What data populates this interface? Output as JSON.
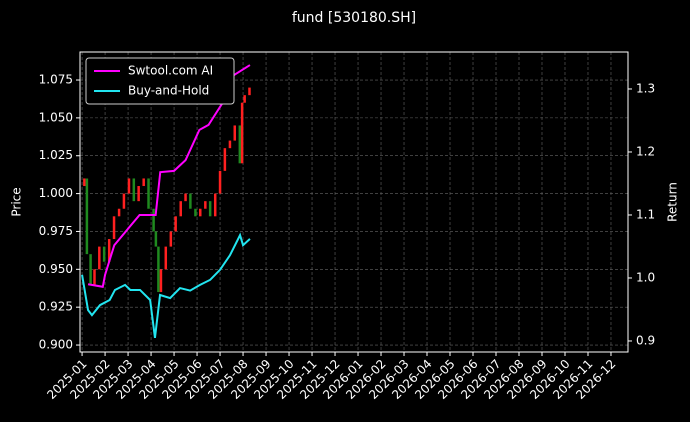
{
  "chart_data": {
    "type": "line",
    "title": "fund [530180.SH]",
    "y_label": "Price",
    "y2_label": "Return",
    "background": "#000000",
    "grid": true,
    "legend": "upper left",
    "xlim": [
      -0.09,
      23.74
    ],
    "xticks": [
      {
        "value": 0,
        "label": "2025-01"
      },
      {
        "value": 1,
        "label": "2025-02"
      },
      {
        "value": 2,
        "label": "2025-03"
      },
      {
        "value": 3,
        "label": "2025-04"
      },
      {
        "value": 4,
        "label": "2025-05"
      },
      {
        "value": 5,
        "label": "2025-06"
      },
      {
        "value": 6,
        "label": "2025-07"
      },
      {
        "value": 7,
        "label": "2025-08"
      },
      {
        "value": 8,
        "label": "2025-09"
      },
      {
        "value": 9,
        "label": "2025-10"
      },
      {
        "value": 10,
        "label": "2025-11"
      },
      {
        "value": 11,
        "label": "2025-12"
      },
      {
        "value": 12,
        "label": "2026-01"
      },
      {
        "value": 13,
        "label": "2026-02"
      },
      {
        "value": 14,
        "label": "2026-03"
      },
      {
        "value": 15,
        "label": "2026-04"
      },
      {
        "value": 16,
        "label": "2026-05"
      },
      {
        "value": 17,
        "label": "2026-06"
      },
      {
        "value": 18,
        "label": "2026-07"
      },
      {
        "value": 19,
        "label": "2026-08"
      },
      {
        "value": 20,
        "label": "2026-09"
      },
      {
        "value": 21,
        "label": "2026-10"
      },
      {
        "value": 22,
        "label": "2026-11"
      },
      {
        "value": 23,
        "label": "2026-12"
      }
    ],
    "ylim": [
      0.8954,
      1.0935
    ],
    "yticks": [
      {
        "value": 0.9,
        "label": "0.900"
      },
      {
        "value": 0.925,
        "label": "0.925"
      },
      {
        "value": 0.95,
        "label": "0.950"
      },
      {
        "value": 0.975,
        "label": "0.975"
      },
      {
        "value": 1.0,
        "label": "1.000"
      },
      {
        "value": 1.025,
        "label": "1.025"
      },
      {
        "value": 1.05,
        "label": "1.050"
      },
      {
        "value": 1.075,
        "label": "1.075"
      }
    ],
    "y2lim": [
      0.8825,
      1.3587
    ],
    "y2ticks": [
      0.9,
      {
        "value": 1.0,
        "label": "1.0"
      },
      1.1,
      1.2,
      1.3
    ],
    "price": {
      "up_color": "#ff2020",
      "down_color": "#1f8a1f",
      "x": [
        0,
        0.1,
        0.21,
        0.37,
        0.54,
        0.75,
        0.96,
        1.18,
        1.39,
        1.61,
        1.82,
        2.04,
        2.25,
        2.46,
        2.68,
        2.89,
        3.11,
        3.21,
        3.32,
        3.43,
        3.64,
        3.86,
        4.07,
        4.29,
        4.5,
        4.71,
        4.93,
        5.14,
        5.36,
        5.57,
        5.79,
        6.0,
        6.21,
        6.43,
        6.64,
        6.86,
        6.96,
        7.07,
        7.28
      ],
      "values": [
        1.005,
        1.01,
        0.96,
        0.94,
        0.95,
        0.965,
        0.955,
        0.97,
        0.985,
        0.99,
        1.0,
        1.01,
        0.995,
        1.005,
        1.01,
        0.99,
        0.975,
        0.965,
        0.935,
        0.95,
        0.965,
        0.975,
        0.985,
        0.995,
        1.0,
        0.99,
        0.985,
        0.99,
        0.995,
        0.985,
        1.0,
        1.015,
        1.03,
        1.035,
        1.045,
        1.02,
        1.06,
        1.065,
        1.07
      ]
    },
    "series": [
      {
        "name": "Swtool.com AI",
        "color": "#ff00ff",
        "axis": "y2",
        "x": [
          0.26,
          0.9,
          1.0,
          1.4,
          2.5,
          3.2,
          3.4,
          4.0,
          4.5,
          5.1,
          5.5,
          6.2,
          6.6,
          7.3
        ],
        "values": [
          0.99,
          0.986,
          1.005,
          1.052,
          1.1,
          1.1,
          1.168,
          1.17,
          1.187,
          1.235,
          1.243,
          1.283,
          1.322,
          1.338
        ]
      },
      {
        "name": "Buy-and-Hold",
        "color": "#22e5f0",
        "axis": "y2",
        "x": [
          0,
          0.26,
          0.43,
          0.78,
          1.2,
          1.43,
          1.87,
          2.1,
          2.52,
          2.96,
          3.17,
          3.39,
          3.83,
          4.26,
          4.7,
          5.13,
          5.57,
          6.0,
          6.43,
          6.87,
          7.0,
          7.3
        ],
        "values": [
          1.005,
          0.949,
          0.941,
          0.957,
          0.965,
          0.981,
          0.989,
          0.981,
          0.981,
          0.965,
          0.905,
          0.973,
          0.968,
          0.984,
          0.98,
          0.989,
          0.997,
          1.013,
          1.036,
          1.068,
          1.052,
          1.062
        ]
      }
    ]
  }
}
